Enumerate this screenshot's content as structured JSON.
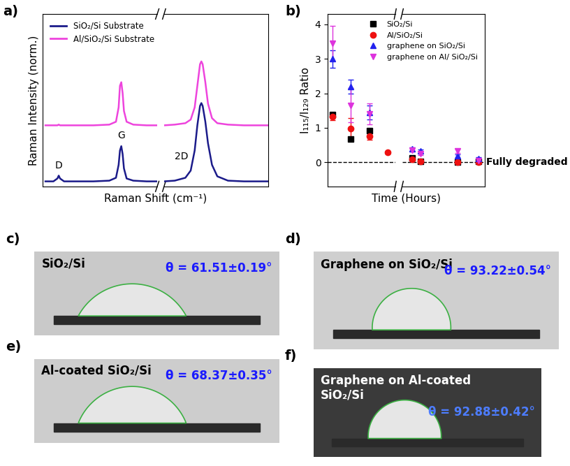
{
  "chart_data": [
    {
      "type": "line",
      "panel": "a)",
      "xlabel": "Raman Shift (cm⁻¹)",
      "ylabel": "Raman Intensity (norm.)",
      "ylim": [
        0,
        2.4
      ],
      "tick_labels": false,
      "legend": "upper left",
      "axes": [
        {
          "xlim": [
            1290,
            1720
          ]
        },
        {
          "xlim": [
            2560,
            2950
          ]
        }
      ],
      "series": [
        {
          "name": "SiO₂/Si Substrate",
          "color": "#1b1b8a",
          "x": [
            1300,
            1330,
            1345,
            1350,
            1355,
            1370,
            1420,
            1480,
            1540,
            1565,
            1575,
            1580,
            1585,
            1590,
            1595,
            1605,
            1630,
            1680,
            1720,
            2560,
            2600,
            2640,
            2660,
            2675,
            2685,
            2695,
            2700,
            2705,
            2715,
            2725,
            2740,
            2760,
            2800,
            2860,
            2950
          ],
          "values": [
            0.07,
            0.07,
            0.11,
            0.15,
            0.11,
            0.07,
            0.07,
            0.07,
            0.08,
            0.12,
            0.3,
            0.5,
            0.56,
            0.45,
            0.25,
            0.11,
            0.08,
            0.07,
            0.07,
            0.07,
            0.08,
            0.12,
            0.22,
            0.5,
            0.85,
            1.12,
            1.16,
            1.12,
            0.9,
            0.6,
            0.3,
            0.14,
            0.08,
            0.07,
            0.07
          ]
        },
        {
          "name": "Al/SiO₂/Si Substrate",
          "color": "#ee44dd",
          "x": [
            1300,
            1330,
            1345,
            1350,
            1355,
            1370,
            1420,
            1480,
            1540,
            1565,
            1575,
            1580,
            1585,
            1590,
            1595,
            1605,
            1630,
            1680,
            1720,
            2560,
            2600,
            2640,
            2660,
            2675,
            2685,
            2695,
            2700,
            2705,
            2715,
            2725,
            2740,
            2760,
            2800,
            2860,
            2950
          ],
          "values": [
            0.85,
            0.85,
            0.85,
            0.86,
            0.85,
            0.85,
            0.85,
            0.85,
            0.86,
            0.9,
            1.1,
            1.4,
            1.45,
            1.3,
            1.05,
            0.9,
            0.86,
            0.85,
            0.85,
            0.85,
            0.86,
            0.88,
            0.93,
            1.1,
            1.4,
            1.7,
            1.74,
            1.7,
            1.45,
            1.15,
            0.95,
            0.88,
            0.86,
            0.85,
            0.85
          ]
        }
      ],
      "annotations": [
        {
          "text": "D",
          "x": 1350,
          "y": 0.22
        },
        {
          "text": "G",
          "x": 1585,
          "y": 0.64
        },
        {
          "text": "2D",
          "x": 2625,
          "y": 0.35
        }
      ]
    },
    {
      "type": "scatter",
      "panel": "b)",
      "xlabel": "Time (Hours)",
      "ylabel": "I₁₁₅/I₁₂₉ Ratio",
      "ylim": [
        -0.7,
        4.3
      ],
      "yticks": [
        0,
        1,
        2,
        3,
        4
      ],
      "tick_labels": "y",
      "legend": "upper right",
      "axes": [
        {
          "xlim": [
            -0.5,
            6.8
          ]
        },
        {
          "xlim": [
            60,
            540
          ]
        }
      ],
      "reference_line": {
        "value": 0,
        "label": "Fully degraded"
      },
      "series": [
        {
          "name": "SiO₂/Si",
          "color": "#000000",
          "marker": "square",
          "x": [
            0,
            2,
            4,
            120,
            168,
            384,
            504
          ],
          "values": [
            1.38,
            0.68,
            0.92,
            0.12,
            0.02,
            0.0,
            0.02
          ],
          "errors": [
            0.05,
            0.03,
            0.04,
            0.03,
            0.02,
            0.01,
            0.02
          ]
        },
        {
          "name": "Al/SiO₂/Si",
          "color": "#ee1111",
          "marker": "circle",
          "x": [
            0,
            2,
            4,
            6,
            120,
            168,
            384,
            504
          ],
          "values": [
            1.33,
            0.98,
            0.75,
            0.28,
            0.08,
            0.02,
            0.0,
            0.0
          ],
          "errors": [
            0.1,
            0.3,
            0.1,
            0.03,
            0.03,
            0.02,
            0.01,
            0.01
          ]
        },
        {
          "name": "graphene on SiO₂/Si",
          "color": "#2222ee",
          "marker": "triangle_up",
          "x": [
            0,
            2,
            4,
            120,
            168,
            384,
            504
          ],
          "values": [
            3.0,
            2.2,
            1.45,
            0.38,
            0.32,
            0.18,
            0.1
          ],
          "errors": [
            0.25,
            0.2,
            0.2,
            0.05,
            0.05,
            0.05,
            0.04
          ]
        },
        {
          "name": "graphene on Al/ SiO₂/Si",
          "color": "#dd33dd",
          "marker": "triangle_down",
          "x": [
            0,
            2,
            4,
            120,
            168,
            384,
            504
          ],
          "values": [
            3.45,
            1.65,
            1.4,
            0.35,
            0.25,
            0.32,
            0.05
          ],
          "errors": [
            0.5,
            0.5,
            0.3,
            0.05,
            0.05,
            0.06,
            0.03
          ]
        }
      ]
    }
  ],
  "photos": [
    {
      "panel": "c)",
      "label": "SiO₂/Si",
      "contact_angle": 61.51,
      "angle_label": "θ = 61.51±0.19°"
    },
    {
      "panel": "d)",
      "label": "Graphene on SiO₂/Si",
      "contact_angle": 93.22,
      "angle_label": "θ = 93.22±0.54°"
    },
    {
      "panel": "e)",
      "label": "Al-coated SiO₂/Si",
      "contact_angle": 68.37,
      "angle_label": "θ = 68.37±0.35°"
    },
    {
      "panel": "f)",
      "label": "Graphene on Al-coated\nSiO₂/Si",
      "contact_angle": 92.88,
      "angle_label": "θ = 92.88±0.42°"
    }
  ]
}
